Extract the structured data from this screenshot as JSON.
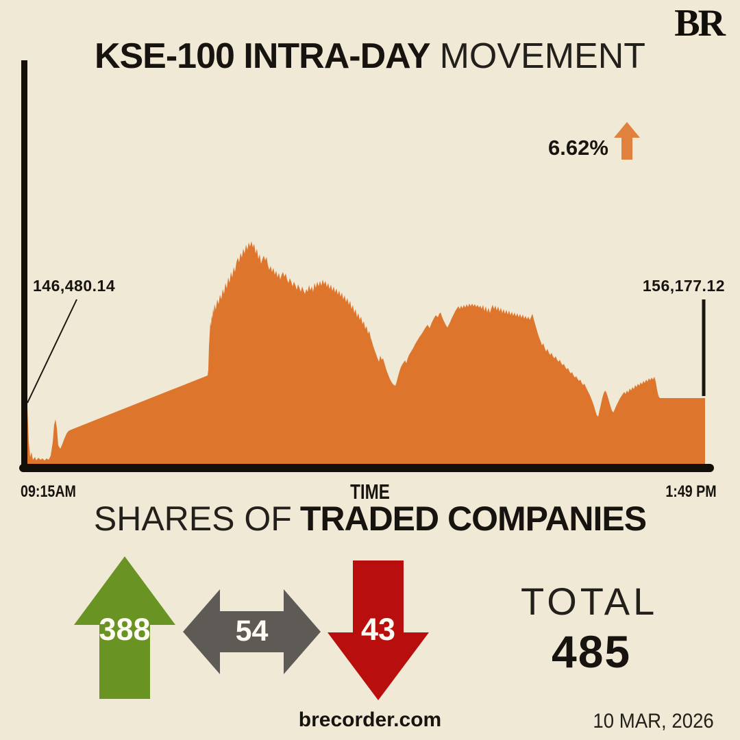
{
  "meta": {
    "brand": "BR",
    "website": "brecorder.com",
    "date": "10 MAR, 2026"
  },
  "header": {
    "title_strong": "KSE-100 INTRA-DAY",
    "title_light": "MOVEMENT"
  },
  "chart": {
    "open_label": "146,480.14",
    "close_label": "156,177.12",
    "change_percent": "6.62%",
    "x_start": "09:15AM",
    "x_axis_label": "TIME",
    "x_end": "1:49 PM"
  },
  "shares": {
    "heading_light": "SHARES OF",
    "heading_strong": "TRADED COMPANIES",
    "advancers": "388",
    "unchanged": "54",
    "decliners": "43",
    "total_label": "TOTAL",
    "total_value": "485"
  },
  "colors": {
    "background": "#efe9d6",
    "ink": "#17140f",
    "chart_fill": "#dd752c",
    "axis": "#120f08",
    "pointer_line": "#1b1810",
    "change_arrow": "#e0823e",
    "advancers_green": "#699323",
    "unchanged_gray": "#5e5a55",
    "decliners_red": "#b80e0e",
    "stat_number_white": "#fdfbf2"
  },
  "chart_data": {
    "type": "area",
    "title": "KSE-100 INTRA-DAY MOVEMENT",
    "xlabel": "TIME",
    "x_start_label": "09:15AM",
    "x_end_label": "1:49 PM",
    "open_value": 146480.14,
    "close_value": 156177.12,
    "change_percent": 6.62,
    "direction": "up",
    "grid": false,
    "y_axis_labels_visible": false,
    "pixel_geometry": {
      "baseline_y": 683,
      "x_range": [
        38,
        1029
      ],
      "points": [
        [
          38,
          592
        ],
        [
          40,
          596
        ],
        [
          42,
          645
        ],
        [
          44,
          667
        ],
        [
          46,
          660
        ],
        [
          48,
          671
        ],
        [
          51,
          667
        ],
        [
          53,
          672
        ],
        [
          56,
          668
        ],
        [
          59,
          671
        ],
        [
          62,
          669
        ],
        [
          65,
          672
        ],
        [
          68,
          669
        ],
        [
          71,
          671
        ],
        [
          74,
          665
        ],
        [
          77,
          645
        ],
        [
          79,
          620
        ],
        [
          81,
          612
        ],
        [
          83,
          625
        ],
        [
          85,
          650
        ],
        [
          88,
          655
        ],
        [
          91,
          648
        ],
        [
          94,
          640
        ],
        [
          97,
          633
        ],
        [
          100,
          629
        ],
        [
          104,
          627
        ],
        [
          303,
          548
        ],
        [
          304,
          540
        ],
        [
          305,
          505
        ],
        [
          306,
          488
        ],
        [
          307,
          470
        ],
        [
          308,
          476
        ],
        [
          309,
          460
        ],
        [
          310,
          465
        ],
        [
          311,
          450
        ],
        [
          312,
          457
        ],
        [
          313,
          444
        ],
        [
          315,
          452
        ],
        [
          317,
          437
        ],
        [
          319,
          444
        ],
        [
          321,
          430
        ],
        [
          323,
          437
        ],
        [
          325,
          422
        ],
        [
          327,
          429
        ],
        [
          329,
          413
        ],
        [
          331,
          421
        ],
        [
          333,
          405
        ],
        [
          335,
          413
        ],
        [
          337,
          397
        ],
        [
          339,
          405
        ],
        [
          341,
          390
        ],
        [
          343,
          397
        ],
        [
          345,
          383
        ],
        [
          347,
          376
        ],
        [
          349,
          383
        ],
        [
          351,
          369
        ],
        [
          353,
          376
        ],
        [
          355,
          363
        ],
        [
          357,
          370
        ],
        [
          359,
          357
        ],
        [
          361,
          365
        ],
        [
          363,
          354
        ],
        [
          365,
          360
        ],
        [
          367,
          352
        ],
        [
          369,
          361
        ],
        [
          371,
          356
        ],
        [
          373,
          370
        ],
        [
          375,
          363
        ],
        [
          377,
          378
        ],
        [
          379,
          371
        ],
        [
          381,
          385
        ],
        [
          383,
          378
        ],
        [
          385,
          373
        ],
        [
          387,
          380
        ],
        [
          389,
          375
        ],
        [
          391,
          387
        ],
        [
          393,
          394
        ],
        [
          395,
          388
        ],
        [
          397,
          397
        ],
        [
          399,
          391
        ],
        [
          401,
          401
        ],
        [
          403,
          395
        ],
        [
          405,
          405
        ],
        [
          407,
          398
        ],
        [
          409,
          408
        ],
        [
          411,
          401
        ],
        [
          413,
          397
        ],
        [
          415,
          404
        ],
        [
          417,
          399
        ],
        [
          419,
          408
        ],
        [
          421,
          413
        ],
        [
          423,
          406
        ],
        [
          425,
          411
        ],
        [
          427,
          418
        ],
        [
          429,
          411
        ],
        [
          431,
          416
        ],
        [
          433,
          423
        ],
        [
          435,
          415
        ],
        [
          437,
          420
        ],
        [
          439,
          426
        ],
        [
          441,
          418
        ],
        [
          443,
          424
        ],
        [
          445,
          429
        ],
        [
          447,
          422
        ],
        [
          449,
          426
        ],
        [
          451,
          416
        ],
        [
          453,
          424
        ],
        [
          455,
          418
        ],
        [
          457,
          426
        ],
        [
          459,
          413
        ],
        [
          461,
          420
        ],
        [
          463,
          411
        ],
        [
          465,
          418
        ],
        [
          467,
          410
        ],
        [
          469,
          417
        ],
        [
          471,
          408
        ],
        [
          473,
          415
        ],
        [
          475,
          410
        ],
        [
          477,
          419
        ],
        [
          479,
          413
        ],
        [
          481,
          422
        ],
        [
          483,
          415
        ],
        [
          485,
          425
        ],
        [
          487,
          418
        ],
        [
          489,
          427
        ],
        [
          491,
          421
        ],
        [
          493,
          430
        ],
        [
          495,
          424
        ],
        [
          497,
          433
        ],
        [
          499,
          427
        ],
        [
          501,
          437
        ],
        [
          503,
          431
        ],
        [
          505,
          441
        ],
        [
          507,
          435
        ],
        [
          509,
          445
        ],
        [
          511,
          439
        ],
        [
          513,
          451
        ],
        [
          515,
          445
        ],
        [
          517,
          457
        ],
        [
          519,
          451
        ],
        [
          521,
          463
        ],
        [
          523,
          457
        ],
        [
          525,
          467
        ],
        [
          527,
          462
        ],
        [
          529,
          473
        ],
        [
          531,
          469
        ],
        [
          533,
          480
        ],
        [
          535,
          476
        ],
        [
          537,
          487
        ],
        [
          539,
          483
        ],
        [
          541,
          493
        ],
        [
          543,
          499
        ],
        [
          545,
          506
        ],
        [
          547,
          512
        ],
        [
          549,
          517
        ],
        [
          551,
          523
        ],
        [
          553,
          528
        ],
        [
          555,
          519
        ],
        [
          557,
          525
        ],
        [
          559,
          523
        ],
        [
          561,
          530
        ],
        [
          563,
          537
        ],
        [
          565,
          543
        ],
        [
          567,
          548
        ],
        [
          569,
          553
        ],
        [
          571,
          557
        ],
        [
          573,
          560
        ],
        [
          575,
          562
        ],
        [
          577,
          563
        ],
        [
          579,
          557
        ],
        [
          581,
          549
        ],
        [
          583,
          542
        ],
        [
          585,
          536
        ],
        [
          587,
          532
        ],
        [
          589,
          529
        ],
        [
          591,
          526
        ],
        [
          593,
          530
        ],
        [
          595,
          523
        ],
        [
          597,
          518
        ],
        [
          600,
          513
        ],
        [
          603,
          508
        ],
        [
          606,
          502
        ],
        [
          609,
          497
        ],
        [
          612,
          492
        ],
        [
          615,
          488
        ],
        [
          618,
          483
        ],
        [
          621,
          478
        ],
        [
          624,
          474
        ],
        [
          627,
          479
        ],
        [
          630,
          471
        ],
        [
          633,
          465
        ],
        [
          636,
          460
        ],
        [
          639,
          463
        ],
        [
          641,
          458
        ],
        [
          643,
          456
        ],
        [
          645,
          462
        ],
        [
          647,
          467
        ],
        [
          649,
          471
        ],
        [
          651,
          475
        ],
        [
          653,
          478
        ],
        [
          655,
          474
        ],
        [
          657,
          470
        ],
        [
          659,
          465
        ],
        [
          661,
          461
        ],
        [
          663,
          457
        ],
        [
          665,
          453
        ],
        [
          667,
          450
        ],
        [
          669,
          447
        ],
        [
          671,
          451
        ],
        [
          673,
          446
        ],
        [
          675,
          450
        ],
        [
          677,
          445
        ],
        [
          679,
          449
        ],
        [
          681,
          444
        ],
        [
          683,
          448
        ],
        [
          685,
          443
        ],
        [
          687,
          447
        ],
        [
          689,
          443
        ],
        [
          691,
          447
        ],
        [
          693,
          444
        ],
        [
          695,
          448
        ],
        [
          697,
          445
        ],
        [
          699,
          449
        ],
        [
          701,
          446
        ],
        [
          703,
          451
        ],
        [
          705,
          445
        ],
        [
          707,
          454
        ],
        [
          709,
          447
        ],
        [
          711,
          456
        ],
        [
          713,
          449
        ],
        [
          715,
          457
        ],
        [
          717,
          450
        ],
        [
          719,
          445
        ],
        [
          721,
          451
        ],
        [
          723,
          446
        ],
        [
          725,
          453
        ],
        [
          727,
          447
        ],
        [
          729,
          455
        ],
        [
          731,
          449
        ],
        [
          733,
          457
        ],
        [
          735,
          451
        ],
        [
          737,
          458
        ],
        [
          739,
          452
        ],
        [
          741,
          459
        ],
        [
          743,
          453
        ],
        [
          745,
          460
        ],
        [
          747,
          455
        ],
        [
          749,
          461
        ],
        [
          751,
          456
        ],
        [
          753,
          462
        ],
        [
          755,
          457
        ],
        [
          757,
          463
        ],
        [
          759,
          458
        ],
        [
          761,
          464
        ],
        [
          763,
          459
        ],
        [
          765,
          465
        ],
        [
          767,
          461
        ],
        [
          769,
          466
        ],
        [
          771,
          462
        ],
        [
          773,
          467
        ],
        [
          775,
          463
        ],
        [
          777,
          458
        ],
        [
          779,
          466
        ],
        [
          781,
          473
        ],
        [
          783,
          480
        ],
        [
          785,
          487
        ],
        [
          787,
          493
        ],
        [
          789,
          498
        ],
        [
          791,
          504
        ],
        [
          793,
          501
        ],
        [
          795,
          508
        ],
        [
          797,
          513
        ],
        [
          799,
          509
        ],
        [
          801,
          515
        ],
        [
          803,
          518
        ],
        [
          805,
          515
        ],
        [
          807,
          520
        ],
        [
          809,
          523
        ],
        [
          811,
          520
        ],
        [
          813,
          525
        ],
        [
          815,
          528
        ],
        [
          817,
          525
        ],
        [
          819,
          530
        ],
        [
          821,
          533
        ],
        [
          823,
          531
        ],
        [
          825,
          536
        ],
        [
          827,
          539
        ],
        [
          829,
          537
        ],
        [
          831,
          542
        ],
        [
          833,
          545
        ],
        [
          835,
          543
        ],
        [
          837,
          548
        ],
        [
          839,
          551
        ],
        [
          841,
          549
        ],
        [
          843,
          553
        ],
        [
          845,
          556
        ],
        [
          847,
          554
        ],
        [
          849,
          559
        ],
        [
          851,
          562
        ],
        [
          853,
          560
        ],
        [
          855,
          565
        ],
        [
          857,
          569
        ],
        [
          859,
          573
        ],
        [
          861,
          577
        ],
        [
          863,
          582
        ],
        [
          865,
          587
        ],
        [
          867,
          593
        ],
        [
          869,
          600
        ],
        [
          871,
          606
        ],
        [
          873,
          608
        ],
        [
          875,
          599
        ],
        [
          877,
          590
        ],
        [
          879,
          581
        ],
        [
          881,
          574
        ],
        [
          883,
          570
        ],
        [
          885,
          573
        ],
        [
          887,
          579
        ],
        [
          889,
          586
        ],
        [
          891,
          593
        ],
        [
          893,
          599
        ],
        [
          895,
          602
        ],
        [
          897,
          598
        ],
        [
          899,
          593
        ],
        [
          901,
          589
        ],
        [
          903,
          585
        ],
        [
          905,
          581
        ],
        [
          907,
          578
        ],
        [
          909,
          575
        ],
        [
          911,
          572
        ],
        [
          913,
          575
        ],
        [
          915,
          570
        ],
        [
          917,
          573
        ],
        [
          919,
          567
        ],
        [
          921,
          570
        ],
        [
          923,
          565
        ],
        [
          925,
          568
        ],
        [
          927,
          562
        ],
        [
          929,
          565
        ],
        [
          931,
          560
        ],
        [
          933,
          563
        ],
        [
          935,
          558
        ],
        [
          937,
          561
        ],
        [
          939,
          556
        ],
        [
          941,
          559
        ],
        [
          943,
          554
        ],
        [
          945,
          557
        ],
        [
          947,
          552
        ],
        [
          949,
          555
        ],
        [
          951,
          551
        ],
        [
          953,
          554
        ],
        [
          955,
          550
        ],
        [
          957,
          557
        ],
        [
          959,
          569
        ],
        [
          961,
          578
        ],
        [
          963,
          581
        ],
        [
          1029,
          581
        ]
      ]
    }
  }
}
